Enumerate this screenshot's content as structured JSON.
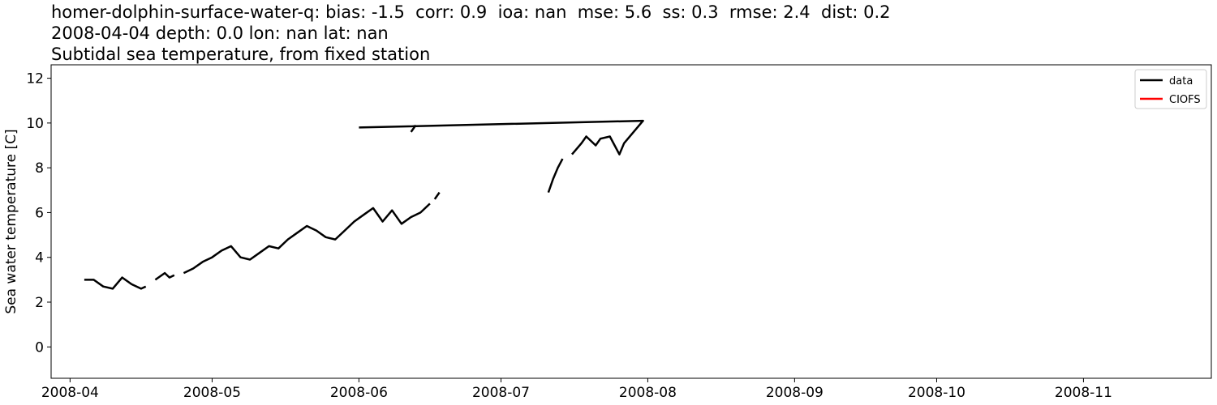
{
  "title_lines": [
    "homer-dolphin-surface-water-q: bias: -1.5  corr: 0.9  ioa: nan  mse: 5.6  ss: 0.3  rmse: 2.4  dist: 0.2",
    "2008-04-04 depth: 0.0 lon: nan lat: nan",
    "Subtidal sea temperature, from fixed station"
  ],
  "chart_data": {
    "type": "line",
    "title": "homer-dolphin-surface-water-q: bias: -1.5  corr: 0.9  ioa: nan  mse: 5.6  ss: 0.3  rmse: 2.4  dist: 0.2 / 2008-04-04 depth: 0.0 lon: nan lat: nan / Subtidal sea temperature, from fixed station",
    "xlabel": "",
    "ylabel": "Sea water temperature [C]",
    "xlim": [
      "2008-03-28",
      "2008-11-28"
    ],
    "ylim": [
      -1.4,
      12.6
    ],
    "x_ticks": [
      "2008-04",
      "2008-05",
      "2008-06",
      "2008-07",
      "2008-08",
      "2008-09",
      "2008-10",
      "2008-11"
    ],
    "y_ticks": [
      0,
      2,
      4,
      6,
      8,
      10,
      12
    ],
    "grid": false,
    "legend_position": "top-right",
    "series": [
      {
        "name": "data",
        "color": "#000000",
        "segments": [
          [
            [
              "2008-04-04",
              3.0
            ],
            [
              "2008-04-06",
              3.0
            ],
            [
              "2008-04-08",
              2.7
            ],
            [
              "2008-04-10",
              2.6
            ],
            [
              "2008-04-12",
              3.1
            ],
            [
              "2008-04-14",
              2.8
            ],
            [
              "2008-04-16",
              2.6
            ],
            [
              "2008-04-17",
              2.7
            ]
          ],
          [
            [
              "2008-04-19",
              3.0
            ],
            [
              "2008-04-21",
              3.3
            ],
            [
              "2008-04-22",
              3.1
            ],
            [
              "2008-04-23",
              3.2
            ]
          ],
          [
            [
              "2008-04-25",
              3.3
            ],
            [
              "2008-04-27",
              3.5
            ],
            [
              "2008-04-29",
              3.8
            ],
            [
              "2008-05-01",
              4.0
            ],
            [
              "2008-05-03",
              4.3
            ],
            [
              "2008-05-05",
              4.5
            ],
            [
              "2008-05-07",
              4.0
            ],
            [
              "2008-05-09",
              3.9
            ],
            [
              "2008-05-11",
              4.2
            ],
            [
              "2008-05-13",
              4.5
            ],
            [
              "2008-05-15",
              4.4
            ],
            [
              "2008-05-17",
              4.8
            ],
            [
              "2008-05-19",
              5.1
            ],
            [
              "2008-05-21",
              5.4
            ],
            [
              "2008-05-23",
              5.2
            ],
            [
              "2008-05-25",
              4.9
            ],
            [
              "2008-05-27",
              4.8
            ],
            [
              "2008-05-29",
              5.2
            ],
            [
              "2008-05-31",
              5.6
            ],
            [
              "2008-06-02",
              5.9
            ],
            [
              "2008-06-04",
              6.2
            ],
            [
              "2008-06-06",
              5.6
            ],
            [
              "2008-06-08",
              6.1
            ],
            [
              "2008-06-10",
              5.5
            ],
            [
              "2008-06-12",
              5.8
            ],
            [
              "2008-06-14",
              6.0
            ],
            [
              "2008-06-16",
              6.4
            ]
          ],
          [
            [
              "2008-06-17",
              6.6
            ],
            [
              "2008-06-18",
              6.9
            ]
          ],
          [
            [
              "2008-07-11",
              6.9
            ],
            [
              "2008-07-12",
              7.5
            ],
            [
              "2008-07-13",
              8.0
            ],
            [
              "2008-07-14",
              8.4
            ]
          ],
          [
            [
              "2008-07-16",
              8.6
            ],
            [
              "2008-07-18",
              9.1
            ],
            [
              "2008-07-19",
              9.4
            ],
            [
              "2008-07-21",
              9.0
            ],
            [
              "2008-07-22",
              9.3
            ],
            [
              "2008-07-24",
              9.4
            ],
            [
              "2008-07-26",
              8.6
            ],
            [
              "2008-07-27",
              9.1
            ],
            [
              "2008-07-29",
              9.6
            ],
            [
              "2008-07-31",
              10.1
            ],
            [
              "2008-06-01",
              9.8
            ]
          ],
          [
            [
              "2008-06-12",
              9.6
            ],
            [
              "2008-06-13",
              9.9
            ]
          ]
        ]
      },
      {
        "name": "CIOFS",
        "color": "#ff0000",
        "segments": []
      }
    ]
  }
}
